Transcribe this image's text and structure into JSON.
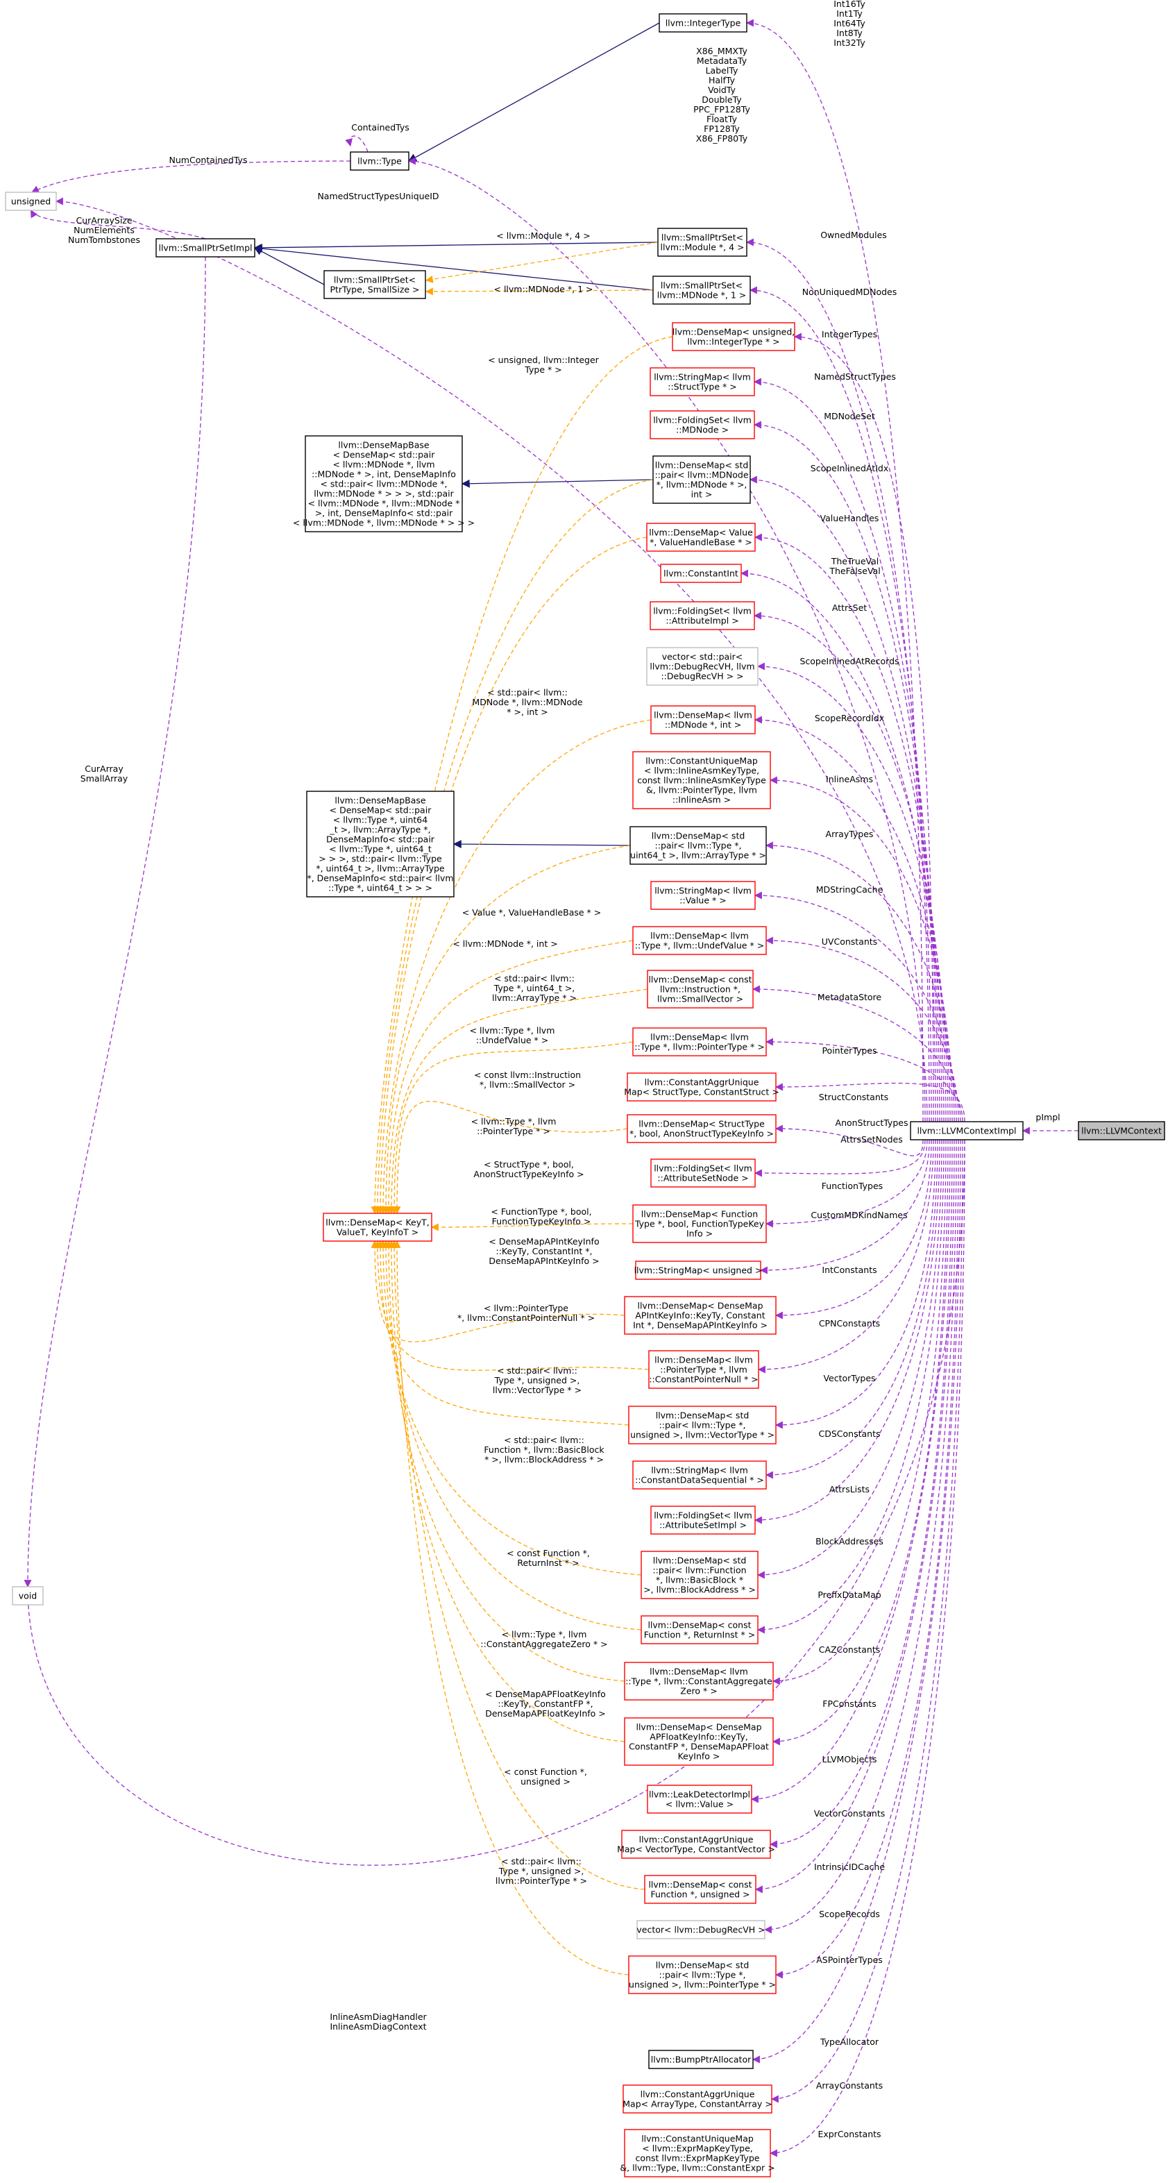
{
  "colors": {
    "inherit_edge": "#191970",
    "template_edge": "#ffa500",
    "member_edge": "#9a32cd",
    "node_black": "#000000",
    "node_red": "#ff0000",
    "node_grey": "#bfbfbf",
    "highlight_fill": "#bfbfbf"
  },
  "nodes": {
    "integer_type": [
      "llvm::IntegerType"
    ],
    "type": [
      "llvm::Type"
    ],
    "unsigned": [
      "unsigned"
    ],
    "small_ptr_set_impl": [
      "llvm::SmallPtrSetImpl"
    ],
    "small_ptr_set_template": [
      "llvm::SmallPtrSet<",
      "PtrType, SmallSize >"
    ],
    "small_ptr_set_module": [
      "llvm::SmallPtrSet<",
      "llvm::Module *, 4 >"
    ],
    "small_ptr_set_mdnode": [
      "llvm::SmallPtrSet<",
      "llvm::MDNode *, 1 >"
    ],
    "dense_map_unsigned_integertype": [
      "llvm::DenseMap< unsigned,",
      "llvm::IntegerType * >"
    ],
    "string_map_structtype": [
      "llvm::StringMap< llvm",
      "::StructType * >"
    ],
    "folding_set_mdnode": [
      "llvm::FoldingSet< llvm",
      "::MDNode >"
    ],
    "dense_map_base_mdnode": [
      "llvm::DenseMapBase",
      "< DenseMap< std::pair",
      "< llvm::MDNode *, llvm",
      "::MDNode * >, int, DenseMapInfo",
      "< std::pair< llvm::MDNode *,",
      "llvm::MDNode * > > >, std::pair",
      "< llvm::MDNode *, llvm::MDNode *",
      ">, int, DenseMapInfo< std::pair",
      "< llvm::MDNode *, llvm::MDNode * > > >"
    ],
    "dense_map_pair_mdnode": [
      "llvm::DenseMap< std",
      "::pair< llvm::MDNode",
      "*, llvm::MDNode * >,",
      "int >"
    ],
    "dense_map_value_handle": [
      "llvm::DenseMap< Value",
      "*, ValueHandleBase * >"
    ],
    "constant_int": [
      "llvm::ConstantInt"
    ],
    "folding_set_attribute_impl": [
      "llvm::FoldingSet< llvm",
      "::AttributeImpl >"
    ],
    "vector_debug_rec_pair": [
      "vector< std::pair<",
      "llvm::DebugRecVH, llvm",
      "::DebugRecVH > >"
    ],
    "dense_map_mdnode_int": [
      "llvm::DenseMap< llvm",
      "::MDNode *, int >"
    ],
    "constant_unique_map_inline_asm": [
      "llvm::ConstantUniqueMap",
      "< llvm::InlineAsmKeyType,",
      "const llvm::InlineAsmKeyType",
      "&, llvm::PointerType, llvm",
      "::InlineAsm >"
    ],
    "dense_map_base_arraytype": [
      "llvm::DenseMapBase",
      "< DenseMap< std::pair",
      "< llvm::Type *, uint64",
      "_t >, llvm::ArrayType *,",
      "DenseMapInfo< std::pair",
      "< llvm::Type *, uint64_t",
      "> > >, std::pair< llvm::Type",
      "*, uint64_t >, llvm::ArrayType",
      "*, DenseMapInfo< std::pair< llvm",
      "::Type *, uint64_t > > >"
    ],
    "dense_map_pair_arraytype": [
      "llvm::DenseMap< std",
      "::pair< llvm::Type *,",
      "uint64_t >, llvm::ArrayType * >"
    ],
    "string_map_value": [
      "llvm::StringMap< llvm",
      "::Value * >"
    ],
    "dense_map_undef_value": [
      "llvm::DenseMap< llvm",
      "::Type *, llvm::UndefValue * >"
    ],
    "dense_map_small_vector": [
      "llvm::DenseMap< const",
      "llvm::Instruction *,",
      "llvm::SmallVector >"
    ],
    "dense_map_pointer_type": [
      "llvm::DenseMap< llvm",
      "::Type *, llvm::PointerType * >"
    ],
    "constant_aggr_unique_map_struct": [
      "llvm::ConstantAggrUnique",
      "Map< StructType, ConstantStruct >"
    ],
    "dense_map_struct_type": [
      "llvm::DenseMap< StructType",
      "*, bool, AnonStructTypeKeyInfo >"
    ],
    "folding_set_attribute_set_node": [
      "llvm::FoldingSet< llvm",
      "::AttributeSetNode >"
    ],
    "dense_map_function_type": [
      "llvm::DenseMap< Function",
      "Type *, bool, FunctionTypeKey",
      "Info >"
    ],
    "string_map_unsigned": [
      "llvm::StringMap< unsigned >"
    ],
    "dense_map_apint": [
      "llvm::DenseMap< DenseMap",
      "APIntKeyInfo::KeyTy, Constant",
      "Int *, DenseMapAPIntKeyInfo >"
    ],
    "dense_map_constant_pointer_null": [
      "llvm::DenseMap< llvm",
      "::PointerType *, llvm",
      "::ConstantPointerNull * >"
    ],
    "dense_map_vector_type": [
      "llvm::DenseMap< std",
      "::pair< llvm::Type *,",
      "unsigned >, llvm::VectorType * >"
    ],
    "string_map_constant_data_sequential": [
      "llvm::StringMap< llvm",
      "::ConstantDataSequential * >"
    ],
    "folding_set_attribute_set_impl": [
      "llvm::FoldingSet< llvm",
      "::AttributeSetImpl >"
    ],
    "dense_map_block_address": [
      "llvm::DenseMap< std",
      "::pair< llvm::Function",
      "*, llvm::BasicBlock *",
      ">, llvm::BlockAddress * >"
    ],
    "dense_map_return_inst": [
      "llvm::DenseMap< const",
      "Function *, ReturnInst * >"
    ],
    "dense_map_constant_aggregate_zero": [
      "llvm::DenseMap< llvm",
      "::Type *, llvm::ConstantAggregate",
      "Zero * >"
    ],
    "dense_map_apfloat": [
      "llvm::DenseMap< DenseMap",
      "APFloatKeyInfo::KeyTy,",
      "ConstantFP *, DenseMapAPFloat",
      "KeyInfo >"
    ],
    "leak_detector_impl": [
      "llvm::LeakDetectorImpl",
      "< llvm::Value >"
    ],
    "constant_aggr_unique_map_vector": [
      "llvm::ConstantAggrUnique",
      "Map< VectorType, ConstantVector >"
    ],
    "dense_map_function_unsigned": [
      "llvm::DenseMap< const",
      "Function *, unsigned >"
    ],
    "vector_debug_rec_vh": [
      "vector< llvm::DebugRecVH >"
    ],
    "dense_map_pointer_type_pair": [
      "llvm::DenseMap< std",
      "::pair< llvm::Type *,",
      "unsigned >, llvm::PointerType * >"
    ],
    "bump_ptr_allocator": [
      "llvm::BumpPtrAllocator"
    ],
    "constant_aggr_unique_map_array": [
      "llvm::ConstantAggrUnique",
      "Map< ArrayType, ConstantArray >"
    ],
    "constant_unique_map_expr": [
      "llvm::ConstantUniqueMap",
      "< llvm::ExprMapKeyType,",
      "const llvm::ExprMapKeyType",
      "&, llvm::Type, llvm::ConstantExpr >"
    ],
    "dense_map_template": [
      "llvm::DenseMap< KeyT,",
      "ValueT, KeyInfoT >"
    ],
    "void": [
      "void"
    ],
    "llvm_context_impl": [
      "llvm::LLVMContextImpl"
    ],
    "llvm_context": [
      "llvm::LLVMContext"
    ]
  },
  "edge_labels": {
    "integer_types_list": [
      "Int16Ty",
      "Int1Ty",
      "Int64Ty",
      "Int8Ty",
      "Int32Ty"
    ],
    "type_list": [
      "X86_MMXTy",
      "MetadataTy",
      "LabelTy",
      "HalfTy",
      "VoidTy",
      "DoubleTy",
      "PPC_FP128Ty",
      "FloatTy",
      "FP128Ty",
      "X86_FP80Ty"
    ],
    "contained_tys": [
      "ContainedTys"
    ],
    "num_contained_tys": [
      "NumContainedTys"
    ],
    "named_struct_types_unique_id": [
      "NamedStructTypesUniqueID"
    ],
    "cur_array_size": [
      "CurArraySize",
      "NumElements",
      "NumTombstones"
    ],
    "cur_array": [
      "CurArray",
      "SmallArray"
    ],
    "t_module": [
      "< llvm::Module *, 4 >"
    ],
    "t_mdnode": [
      "< llvm::MDNode *, 1 >"
    ],
    "t_unsigned_integer": [
      "< unsigned, llvm::Integer",
      "Type * >"
    ],
    "t_pair_mdnode": [
      "< std::pair< llvm::",
      "MDNode *, llvm::MDNode",
      "* >, int >"
    ],
    "t_value_handle": [
      "< Value *, ValueHandleBase * >"
    ],
    "t_mdnode_int": [
      "< llvm::MDNode *, int >"
    ],
    "t_pair_type_uint64": [
      "< std::pair< llvm::",
      "Type *, uint64_t >,",
      "llvm::ArrayType * >"
    ],
    "t_undef": [
      "< llvm::Type *, llvm",
      "::UndefValue * >"
    ],
    "t_small_vector": [
      "< const llvm::Instruction",
      "*, llvm::SmallVector >"
    ],
    "t_pointer_type": [
      "< llvm::Type *, llvm",
      "::PointerType * >"
    ],
    "t_struct": [
      "< StructType *, bool,",
      "AnonStructTypeKeyInfo >"
    ],
    "t_function_type": [
      "< FunctionType *, bool,",
      "FunctionTypeKeyInfo >"
    ],
    "t_apint": [
      "< DenseMapAPIntKeyInfo",
      "::KeyTy, ConstantInt *,",
      "DenseMapAPIntKeyInfo >"
    ],
    "t_pointer_null": [
      "< llvm::PointerType",
      "*, llvm::ConstantPointerNull * >"
    ],
    "t_vector_type": [
      "< std::pair< llvm::",
      "Type *, unsigned >,",
      "llvm::VectorType * >"
    ],
    "t_block_address": [
      "< std::pair< llvm::",
      "Function *, llvm::BasicBlock",
      "* >, llvm::BlockAddress * >"
    ],
    "t_return_inst": [
      "< const Function *,",
      "ReturnInst * >"
    ],
    "t_aggregate_zero": [
      "< llvm::Type *, llvm",
      "::ConstantAggregateZero * >"
    ],
    "t_apfloat": [
      "< DenseMapAPFloatKeyInfo",
      "::KeyTy, ConstantFP *,",
      "DenseMapAPFloatKeyInfo >"
    ],
    "t_function_unsigned": [
      "< const Function *,",
      "unsigned >"
    ],
    "t_pointer_type_pair": [
      "< std::pair< llvm::",
      "Type *, unsigned >,",
      "llvm::PointerType * >"
    ],
    "inline_asm_diag": [
      "InlineAsmDiagHandler",
      "InlineAsmDiagContext"
    ],
    "owned_modules": [
      "OwnedModules"
    ],
    "non_uniqued_md_nodes": [
      "NonUniquedMDNodes"
    ],
    "integer_types": [
      "IntegerTypes"
    ],
    "named_struct_types": [
      "NamedStructTypes"
    ],
    "md_node_set": [
      "MDNodeSet"
    ],
    "scope_inlined_at_idx": [
      "ScopeInlinedAtIdx"
    ],
    "value_handles": [
      "ValueHandles"
    ],
    "true_false_val": [
      "TheTrueVal",
      "TheFalseVal"
    ],
    "attrs_set": [
      "AttrsSet"
    ],
    "scope_inlined_at_records": [
      "ScopeInlinedAtRecords"
    ],
    "scope_record_idx": [
      "ScopeRecordIdx"
    ],
    "inline_asms": [
      "InlineAsms"
    ],
    "array_types": [
      "ArrayTypes"
    ],
    "md_string_cache": [
      "MDStringCache"
    ],
    "uv_constants": [
      "UVConstants"
    ],
    "metadata_store": [
      "MetadataStore"
    ],
    "pointer_types": [
      "PointerTypes"
    ],
    "struct_constants": [
      "StructConstants"
    ],
    "anon_struct_types": [
      "AnonStructTypes"
    ],
    "attrs_set_nodes": [
      "AttrsSetNodes"
    ],
    "function_types": [
      "FunctionTypes"
    ],
    "custom_md_kind_names": [
      "CustomMDKindNames"
    ],
    "int_constants": [
      "IntConstants"
    ],
    "cpn_constants": [
      "CPNConstants"
    ],
    "vector_types": [
      "VectorTypes"
    ],
    "cds_constants": [
      "CDSConstants"
    ],
    "attrs_lists": [
      "AttrsLists"
    ],
    "block_addresses": [
      "BlockAddresses"
    ],
    "prefix_data_map": [
      "PrefixDataMap"
    ],
    "caz_constants": [
      "CAZConstants"
    ],
    "fp_constants": [
      "FPConstants"
    ],
    "llvm_objects": [
      "LLVMObjects"
    ],
    "vector_constants": [
      "VectorConstants"
    ],
    "intrinsic_id_cache": [
      "IntrinsicIDCache"
    ],
    "scope_records": [
      "ScopeRecords"
    ],
    "as_pointer_types": [
      "ASPointerTypes"
    ],
    "type_allocator": [
      "TypeAllocator"
    ],
    "array_constants": [
      "ArrayConstants"
    ],
    "expr_constants": [
      "ExprConstants"
    ],
    "p_impl": [
      "pImpl"
    ]
  }
}
